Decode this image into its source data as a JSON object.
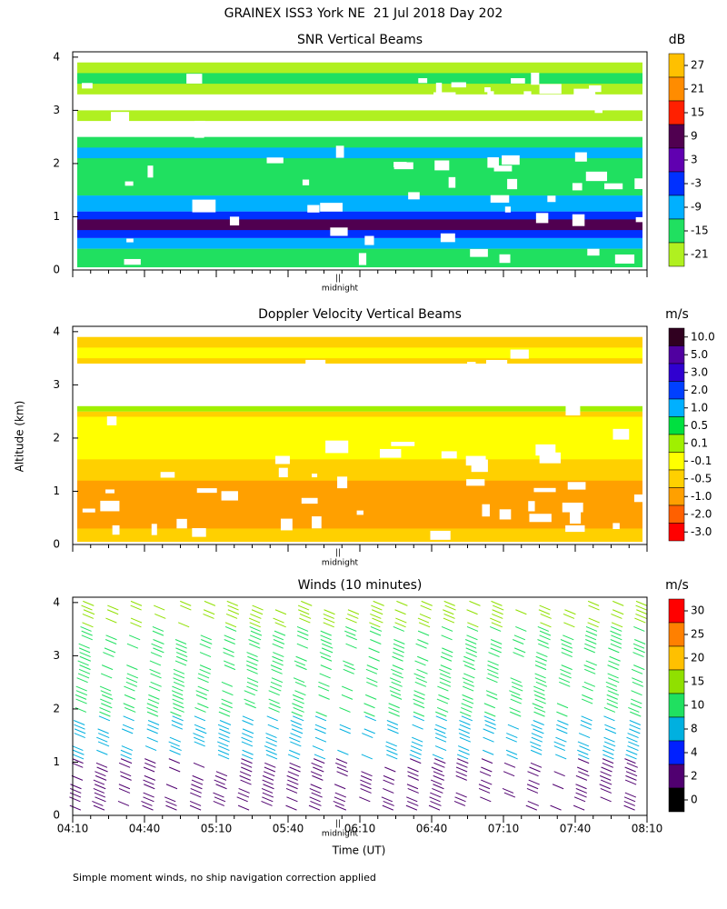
{
  "chart_data": [
    {
      "type": "contour",
      "title": "SNR Vertical Beams",
      "unit": "dB",
      "annotation": "midnight",
      "ylim": [
        0,
        4.1
      ],
      "yticks": [
        0,
        1,
        2,
        3,
        4
      ],
      "colorbar": {
        "ticks": [
          27,
          21,
          15,
          9,
          3,
          -3,
          -9,
          -15,
          -21
        ],
        "colors": [
          "#ffc000",
          "#ff8c00",
          "#ff2000",
          "#500050",
          "#6000b0",
          "#0030ff",
          "#00b0ff",
          "#20e060",
          "#b0f020"
        ]
      }
    },
    {
      "type": "contour",
      "title": "Doppler Velocity Vertical Beams",
      "unit": "m/s",
      "annotation": "midnight",
      "ylim": [
        0,
        4.1
      ],
      "yticks": [
        0,
        1,
        2,
        3,
        4
      ],
      "colorbar": {
        "ticks": [
          {
            "value": 10,
            "label": "10.0"
          },
          {
            "value": 5,
            "label": "5.0"
          },
          {
            "value": 3,
            "label": "3.0"
          },
          {
            "value": 2,
            "label": "2.0"
          },
          {
            "value": 1,
            "label": "1.0"
          },
          0.5,
          0.1,
          -0.1,
          -0.5,
          {
            "value": -1,
            "label": "-1.0"
          },
          {
            "value": -2,
            "label": "-2.0"
          },
          {
            "value": -3,
            "label": "-3.0"
          }
        ],
        "colors": [
          "#300020",
          "#5000a0",
          "#3000d0",
          "#0040ff",
          "#00b0ff",
          "#00e040",
          "#a0f000",
          "#ffff00",
          "#ffd000",
          "#ffa000",
          "#ff6000",
          "#ff0000"
        ]
      }
    },
    {
      "type": "barbs",
      "title": "Winds (10 minutes)",
      "unit": "m/s",
      "annotation": "midnight",
      "ylim": [
        0,
        4.1
      ],
      "yticks": [
        0,
        1,
        2,
        3,
        4
      ],
      "ylabel": "Altitude (km)",
      "xlabel": "Time (UT)",
      "xticks": [
        "04:10",
        "04:40",
        "05:10",
        "05:40",
        "06:10",
        "06:40",
        "07:10",
        "07:40",
        "08:10"
      ],
      "colorbar": {
        "ticks": [
          30,
          25,
          20,
          15,
          10,
          8,
          4,
          2,
          0
        ],
        "colors": [
          "#ff0000",
          "#ff8000",
          "#ffc000",
          "#90e000",
          "#20e060",
          "#00b0e0",
          "#0020ff",
          "#500070",
          "#000000"
        ]
      }
    }
  ],
  "title": "GRAINEX ISS3 York NE  21 Jul 2018 Day 202",
  "footnote": "Simple moment winds, no ship navigation correction applied"
}
